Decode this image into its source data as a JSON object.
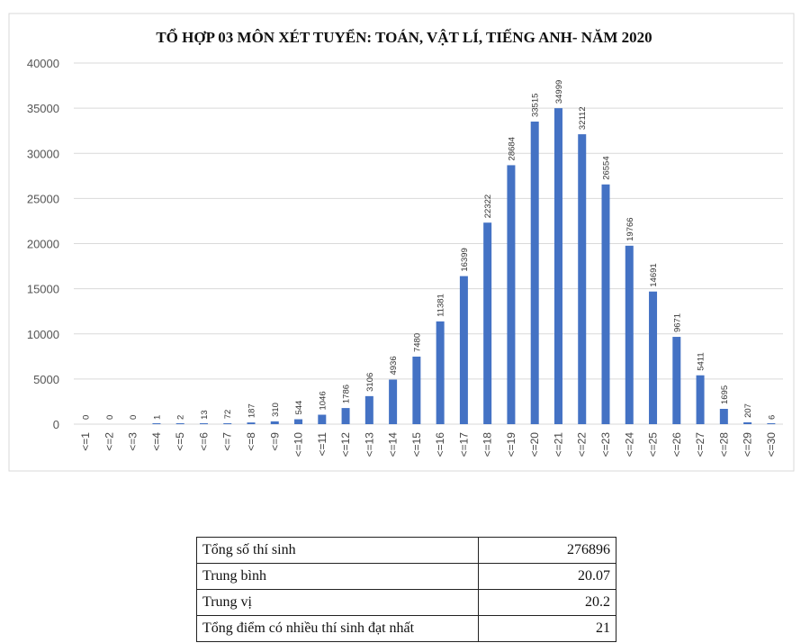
{
  "chart_data": {
    "type": "bar",
    "title": "TỔ HỢP 03 MÔN XÉT TUYỂN: TOÁN, VẬT LÍ, TIẾNG ANH- NĂM 2020",
    "xlabel": "",
    "ylabel": "",
    "ylim": [
      0,
      40000
    ],
    "yticks": [
      "0",
      "5000",
      "10000",
      "15000",
      "20000",
      "25000",
      "30000",
      "35000",
      "40000"
    ],
    "grid": true,
    "bar_color": "#4472c4",
    "categories": [
      "<=1",
      "<=2",
      "<=3",
      "<=4",
      "<=5",
      "<=6",
      "<=7",
      "<=8",
      "<=9",
      "<=10",
      "<=11",
      "<=12",
      "<=13",
      "<=14",
      "<=15",
      "<=16",
      "<=17",
      "<=18",
      "<=19",
      "<=20",
      "<=21",
      "<=22",
      "<=23",
      "<=24",
      "<=25",
      "<=26",
      "<=27",
      "<=28",
      "<=29",
      "<=30"
    ],
    "values": [
      0,
      0,
      0,
      1,
      2,
      13,
      72,
      187,
      310,
      544,
      1046,
      1786,
      3106,
      4936,
      7480,
      11381,
      16399,
      22322,
      28684,
      33515,
      34999,
      32112,
      26554,
      19766,
      14691,
      9671,
      5411,
      1695,
      207,
      6
    ]
  },
  "stats_table": {
    "rows": [
      {
        "label": "Tổng số thí sinh",
        "value": "276896"
      },
      {
        "label": "Trung bình",
        "value": "20.07"
      },
      {
        "label": "Trung vị",
        "value": "20.2"
      },
      {
        "label": "Tổng điểm có nhiều thí sinh đạt nhất",
        "value": "21"
      }
    ]
  }
}
